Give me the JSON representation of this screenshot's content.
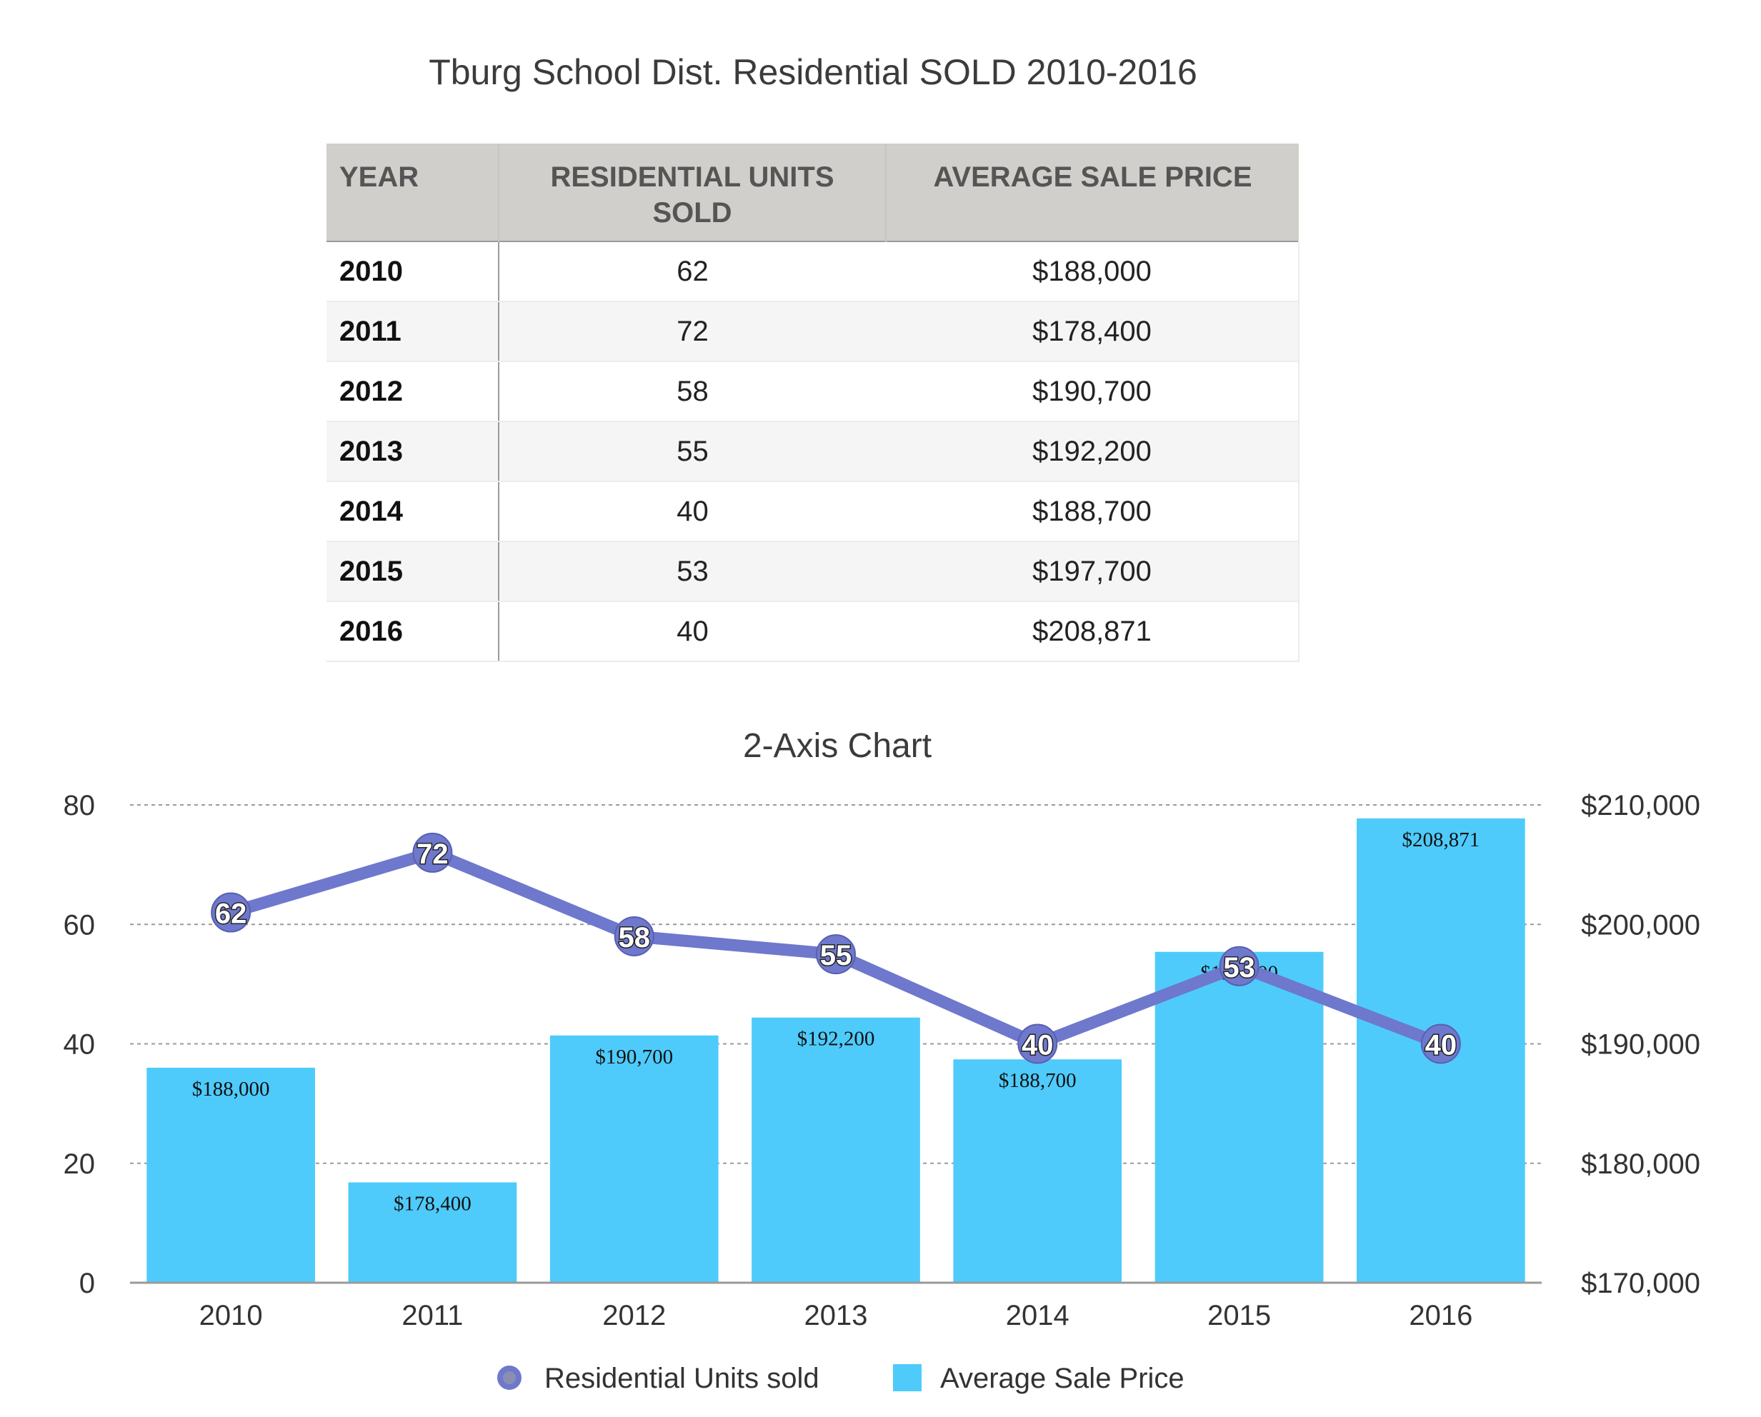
{
  "page": {
    "title": "Tburg School Dist. Residential SOLD  2010-2016"
  },
  "table": {
    "headers": {
      "year": "YEAR",
      "units_line1": "RESIDENTIAL UNITS",
      "units_line2": "SOLD",
      "price": "AVERAGE SALE PRICE"
    },
    "rows": [
      {
        "year": "2010",
        "units": "62",
        "price": "$188,000"
      },
      {
        "year": "2011",
        "units": "72",
        "price": "$178,400"
      },
      {
        "year": "2012",
        "units": "58",
        "price": "$190,700"
      },
      {
        "year": "2013",
        "units": "55",
        "price": "$192,200"
      },
      {
        "year": "2014",
        "units": "40",
        "price": "$188,700"
      },
      {
        "year": "2015",
        "units": "53",
        "price": "$197,700"
      },
      {
        "year": "2016",
        "units": "40",
        "price": "$208,871"
      }
    ]
  },
  "chart_data": {
    "type": "bar",
    "title": "2-Axis Chart",
    "categories": [
      "2010",
      "2011",
      "2012",
      "2013",
      "2014",
      "2015",
      "2016"
    ],
    "series": [
      {
        "name": "Residential Units sold",
        "type": "line",
        "axis": "left",
        "color": "#6e78cc",
        "values": [
          62,
          72,
          58,
          55,
          40,
          53,
          40
        ],
        "labels": [
          "62",
          "72",
          "58",
          "55",
          "40",
          "53",
          "40"
        ]
      },
      {
        "name": "Average Sale Price",
        "type": "bar",
        "axis": "right",
        "color": "#4ecbfb",
        "values": [
          188000,
          178400,
          190700,
          192200,
          188700,
          197700,
          208871
        ],
        "labels": [
          "$188,000",
          "$178,400",
          "$190,700",
          "$192,200",
          "$188,700",
          "$197,700",
          "$208,871"
        ]
      }
    ],
    "y_left": {
      "min": 0,
      "max": 80,
      "ticks": [
        "0",
        "20",
        "40",
        "60",
        "80"
      ]
    },
    "y_right": {
      "min": 170000,
      "max": 210000,
      "ticks": [
        "$170,000",
        "$180,000",
        "$190,000",
        "$200,000",
        "$210,000"
      ]
    },
    "grid": true,
    "legend": "bottom"
  }
}
